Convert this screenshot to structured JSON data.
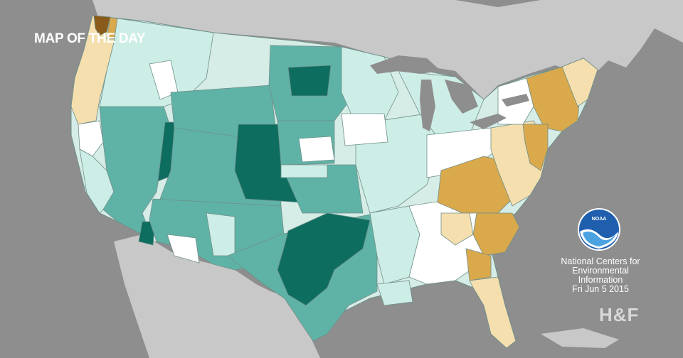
{
  "title": "MAP OF THE DAY",
  "logo_text": "NOAA",
  "credit": {
    "line1": "National Centers for",
    "line2": "Environmental",
    "line3": "Information",
    "line4": "Fri Jun  5 2015"
  },
  "brand": "H&F",
  "colors": {
    "ocean": "#8e8e8e",
    "land_other": "#c8c8c8",
    "neutral": "#ffffff",
    "wet_light": "#cdeee6",
    "wet_mid": "#5fb3a6",
    "wet_dark": "#0d6e60",
    "dry_light": "#f5dfae",
    "dry_mid": "#d9a94c",
    "dry_dark": "#8a5a1a",
    "boundary": "#6f8f89"
  }
}
